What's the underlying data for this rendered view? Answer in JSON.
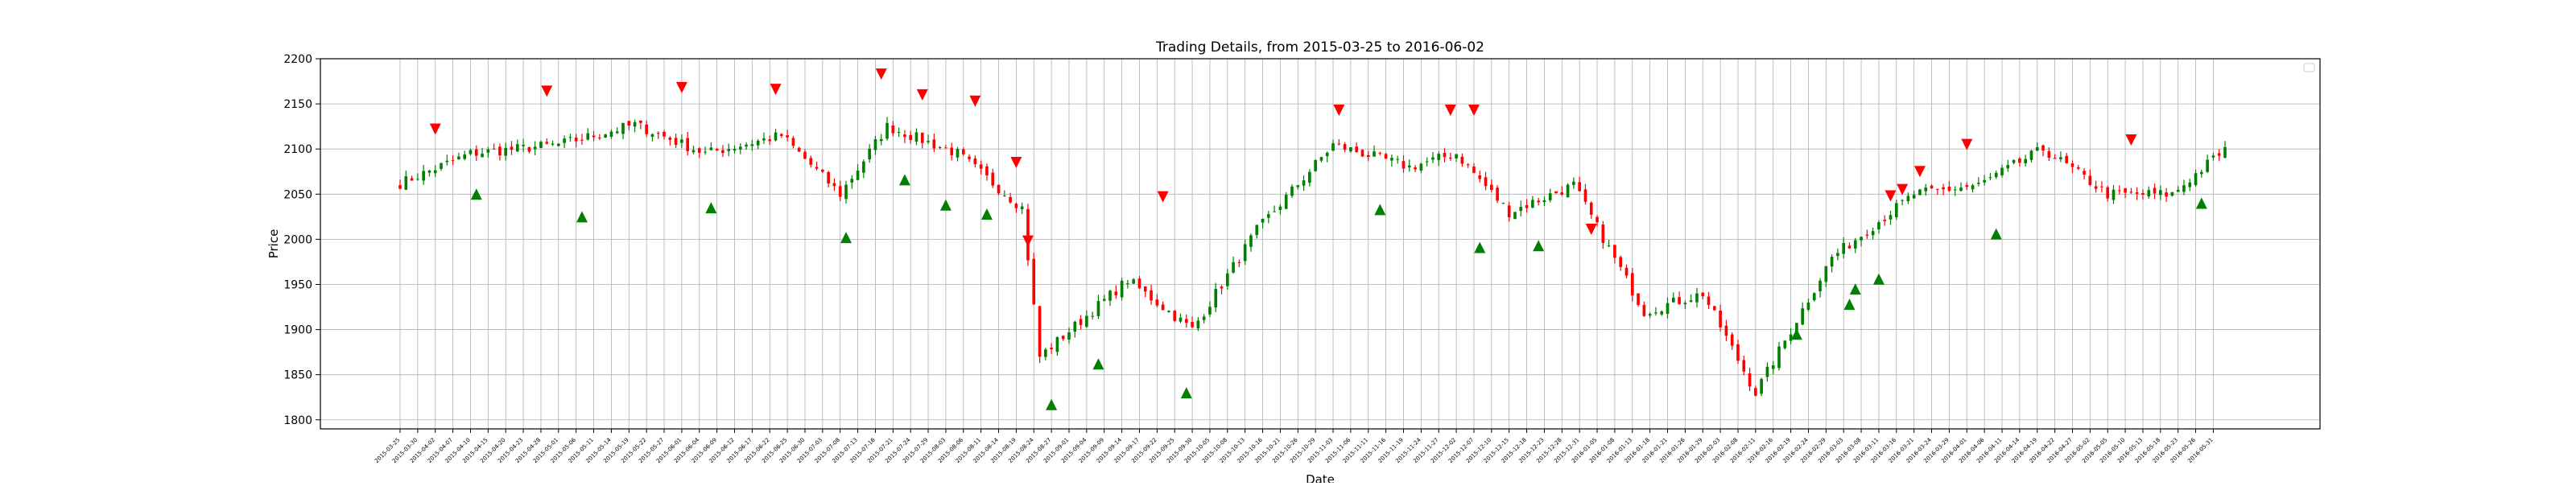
{
  "chart_data": {
    "type": "candlestick",
    "title": "Trading Details, from 2015-03-25 to 2016-06-02",
    "xlabel": "Date",
    "ylabel": "Price",
    "start_date": "2015-03-25",
    "end_date": "2016-06-02",
    "ylim": [
      1790,
      2200
    ],
    "yticks": [
      1800,
      1850,
      1900,
      1950,
      2000,
      2050,
      2100,
      2150,
      2200
    ],
    "grid": true,
    "legend": "top-right, empty",
    "up_color": "#008000",
    "down_color": "#ff0000",
    "buy_marker_color": "#008000",
    "sell_marker_color": "#ff0000",
    "close_anchors": [
      {
        "date": "2015-03-25",
        "close": 2062
      },
      {
        "date": "2015-04-10",
        "close": 2095
      },
      {
        "date": "2015-05-01",
        "close": 2105
      },
      {
        "date": "2015-05-20",
        "close": 2127
      },
      {
        "date": "2015-06-05",
        "close": 2095
      },
      {
        "date": "2015-06-24",
        "close": 2115
      },
      {
        "date": "2015-07-08",
        "close": 2050
      },
      {
        "date": "2015-07-20",
        "close": 2125
      },
      {
        "date": "2015-08-05",
        "close": 2095
      },
      {
        "date": "2015-08-20",
        "close": 2035
      },
      {
        "date": "2015-08-25",
        "close": 1870
      },
      {
        "date": "2015-09-15",
        "close": 1955
      },
      {
        "date": "2015-09-30",
        "close": 1900
      },
      {
        "date": "2015-10-15",
        "close": 2010
      },
      {
        "date": "2015-11-03",
        "close": 2105
      },
      {
        "date": "2015-11-20",
        "close": 2080
      },
      {
        "date": "2015-12-02",
        "close": 2095
      },
      {
        "date": "2015-12-15",
        "close": 2030
      },
      {
        "date": "2015-12-30",
        "close": 2060
      },
      {
        "date": "2016-01-15",
        "close": 1920
      },
      {
        "date": "2016-01-29",
        "close": 1940
      },
      {
        "date": "2016-02-11",
        "close": 1830
      },
      {
        "date": "2016-03-01",
        "close": 1980
      },
      {
        "date": "2016-03-20",
        "close": 2050
      },
      {
        "date": "2016-04-05",
        "close": 2060
      },
      {
        "date": "2016-04-20",
        "close": 2100
      },
      {
        "date": "2016-05-05",
        "close": 2050
      },
      {
        "date": "2016-05-20",
        "close": 2050
      },
      {
        "date": "2016-06-02",
        "close": 2100
      }
    ],
    "sell_signals": [
      {
        "date": "2015-04-02",
        "price": 2122
      },
      {
        "date": "2015-04-29",
        "price": 2164
      },
      {
        "date": "2015-06-01",
        "price": 2168
      },
      {
        "date": "2015-06-23",
        "price": 2166
      },
      {
        "date": "2015-07-17",
        "price": 2183
      },
      {
        "date": "2015-07-28",
        "price": 2160
      },
      {
        "date": "2015-08-10",
        "price": 2153
      },
      {
        "date": "2015-08-19",
        "price": 2085
      },
      {
        "date": "2015-08-21",
        "price": 1998
      },
      {
        "date": "2015-09-23",
        "price": 2047
      },
      {
        "date": "2015-11-04",
        "price": 2143
      },
      {
        "date": "2015-12-01",
        "price": 2143
      },
      {
        "date": "2015-12-07",
        "price": 2143
      },
      {
        "date": "2016-01-04",
        "price": 2011
      },
      {
        "date": "2016-03-15",
        "price": 2048
      },
      {
        "date": "2016-03-17",
        "price": 2055
      },
      {
        "date": "2016-03-22",
        "price": 2075
      },
      {
        "date": "2016-04-01",
        "price": 2105
      },
      {
        "date": "2016-05-11",
        "price": 2110
      }
    ],
    "buy_signals": [
      {
        "date": "2015-04-13",
        "price": 2050
      },
      {
        "date": "2015-05-07",
        "price": 2025
      },
      {
        "date": "2015-06-08",
        "price": 2035
      },
      {
        "date": "2015-07-09",
        "price": 2002
      },
      {
        "date": "2015-07-23",
        "price": 2066
      },
      {
        "date": "2015-08-03",
        "price": 2038
      },
      {
        "date": "2015-08-12",
        "price": 2028
      },
      {
        "date": "2015-08-27",
        "price": 1817
      },
      {
        "date": "2015-09-08",
        "price": 1862
      },
      {
        "date": "2015-09-29",
        "price": 1830
      },
      {
        "date": "2015-11-13",
        "price": 2033
      },
      {
        "date": "2015-12-08",
        "price": 1991
      },
      {
        "date": "2015-12-22",
        "price": 1993
      },
      {
        "date": "2016-02-22",
        "price": 1895
      },
      {
        "date": "2016-03-04",
        "price": 1928
      },
      {
        "date": "2016-03-07",
        "price": 1945
      },
      {
        "date": "2016-03-11",
        "price": 1956
      },
      {
        "date": "2016-04-08",
        "price": 2006
      },
      {
        "date": "2016-05-27",
        "price": 2040
      }
    ]
  }
}
